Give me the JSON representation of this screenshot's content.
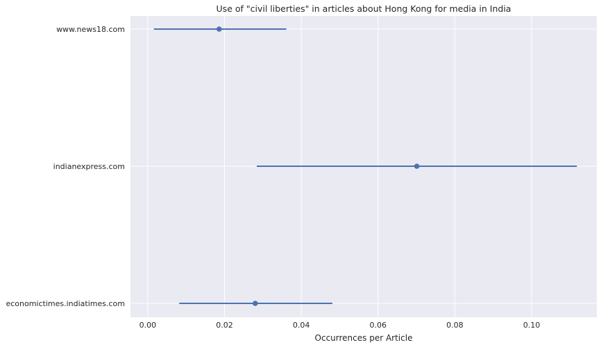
{
  "chart_data": {
    "type": "pointplot-errorbar",
    "title": "Use of \"civil liberties\" in articles about Hong Kong for media in India",
    "xlabel": "Occurrences per Article",
    "ylabel": "",
    "xlim": [
      -0.0045,
      0.117
    ],
    "xticks": [
      0.0,
      0.02,
      0.04,
      0.06,
      0.08,
      0.1
    ],
    "xtick_labels": [
      "0.00",
      "0.02",
      "0.04",
      "0.06",
      "0.08",
      "0.10"
    ],
    "grid": true,
    "categories": [
      "www.news18.com",
      "indianexpress.com",
      "economictimes.indiatimes.com"
    ],
    "values": [
      0.0186,
      0.0701,
      0.028
    ],
    "ci_low": [
      0.0016,
      0.0284,
      0.0082
    ],
    "ci_high": [
      0.0361,
      0.1118,
      0.0481
    ],
    "colors": {
      "background": "#EAEAF2",
      "grid": "#FFFFFF",
      "series": "#4C72B0"
    }
  }
}
